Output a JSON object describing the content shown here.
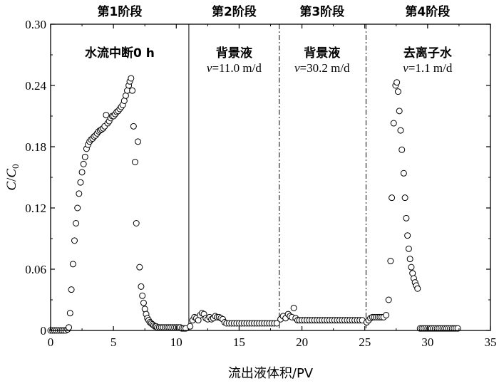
{
  "chart_data": {
    "type": "scatter",
    "xlabel": "流出液体积/PV",
    "ylabel": {
      "main": "C",
      "slash": "/",
      "sub_main": "C",
      "sub": "0"
    },
    "xlim": [
      0,
      35
    ],
    "ylim": [
      0,
      0.3
    ],
    "x_ticks": [
      "0",
      "5",
      "10",
      "15",
      "20",
      "25",
      "30",
      "35"
    ],
    "y_ticks": [
      "0",
      "0.06",
      "0.12",
      "0.18",
      "0.24",
      "0.30"
    ],
    "boundaries": [
      {
        "x": 11.0,
        "style": "solid"
      },
      {
        "x": 18.2,
        "style": "dashdot"
      },
      {
        "x": 25.1,
        "style": "dashdot"
      }
    ],
    "stages": [
      {
        "label": "第1阶段",
        "x": 5.5
      },
      {
        "label": "第2阶段",
        "x": 14.6
      },
      {
        "label": "第3阶段",
        "x": 21.6
      },
      {
        "label": "第4阶段",
        "x": 30.0
      }
    ],
    "annotations": [
      {
        "id": "s1",
        "x": 5.5,
        "line1": "水流中断0 h"
      },
      {
        "id": "s2",
        "x": 14.6,
        "line1": "背景液",
        "var": "v",
        "value": "=11.0 m/d"
      },
      {
        "id": "s3",
        "x": 21.6,
        "line1": "背景液",
        "var": "v",
        "value": "=30.2 m/d"
      },
      {
        "id": "s4",
        "x": 30.0,
        "line1": "去离子水",
        "var": "v",
        "value": "=1.1 m/d"
      }
    ],
    "points": [
      [
        0.0,
        0.0
      ],
      [
        0.15,
        0.0
      ],
      [
        0.3,
        0.0
      ],
      [
        0.45,
        0.0
      ],
      [
        0.6,
        0.0
      ],
      [
        0.75,
        0.0
      ],
      [
        0.9,
        0.0
      ],
      [
        1.05,
        0.0
      ],
      [
        1.2,
        0.0
      ],
      [
        1.35,
        0.001
      ],
      [
        1.45,
        0.003
      ],
      [
        1.55,
        0.017
      ],
      [
        1.65,
        0.04
      ],
      [
        1.78,
        0.065
      ],
      [
        1.9,
        0.088
      ],
      [
        2.02,
        0.105
      ],
      [
        2.14,
        0.12
      ],
      [
        2.26,
        0.134
      ],
      [
        2.38,
        0.145
      ],
      [
        2.5,
        0.155
      ],
      [
        2.62,
        0.163
      ],
      [
        2.74,
        0.17
      ],
      [
        2.86,
        0.178
      ],
      [
        2.98,
        0.182
      ],
      [
        3.1,
        0.185
      ],
      [
        3.22,
        0.187
      ],
      [
        3.34,
        0.188
      ],
      [
        3.46,
        0.19
      ],
      [
        3.58,
        0.191
      ],
      [
        3.7,
        0.193
      ],
      [
        3.82,
        0.195
      ],
      [
        3.94,
        0.196
      ],
      [
        4.06,
        0.197
      ],
      [
        4.18,
        0.198
      ],
      [
        4.3,
        0.2
      ],
      [
        4.42,
        0.211
      ],
      [
        4.54,
        0.203
      ],
      [
        4.66,
        0.205
      ],
      [
        4.78,
        0.208
      ],
      [
        4.9,
        0.21
      ],
      [
        5.02,
        0.21
      ],
      [
        5.14,
        0.212
      ],
      [
        5.26,
        0.214
      ],
      [
        5.38,
        0.215
      ],
      [
        5.5,
        0.217
      ],
      [
        5.62,
        0.219
      ],
      [
        5.74,
        0.221
      ],
      [
        5.86,
        0.225
      ],
      [
        5.98,
        0.23
      ],
      [
        6.1,
        0.235
      ],
      [
        6.22,
        0.24
      ],
      [
        6.3,
        0.244
      ],
      [
        6.4,
        0.247
      ],
      [
        6.5,
        0.235
      ],
      [
        6.6,
        0.2
      ],
      [
        6.72,
        0.165
      ],
      [
        6.82,
        0.105
      ],
      [
        6.95,
        0.185
      ],
      [
        7.08,
        0.062
      ],
      [
        7.2,
        0.043
      ],
      [
        7.3,
        0.034
      ],
      [
        7.4,
        0.027
      ],
      [
        7.5,
        0.021
      ],
      [
        7.6,
        0.016
      ],
      [
        7.7,
        0.012
      ],
      [
        7.8,
        0.01
      ],
      [
        7.9,
        0.008
      ],
      [
        8.0,
        0.007
      ],
      [
        8.1,
        0.006
      ],
      [
        8.2,
        0.005
      ],
      [
        8.3,
        0.004
      ],
      [
        8.4,
        0.004
      ],
      [
        8.5,
        0.003
      ],
      [
        8.65,
        0.003
      ],
      [
        8.8,
        0.003
      ],
      [
        8.95,
        0.003
      ],
      [
        9.1,
        0.003
      ],
      [
        9.25,
        0.003
      ],
      [
        9.4,
        0.003
      ],
      [
        9.55,
        0.003
      ],
      [
        9.7,
        0.003
      ],
      [
        9.85,
        0.003
      ],
      [
        10.0,
        0.003
      ],
      [
        10.15,
        0.003
      ],
      [
        10.3,
        0.003
      ],
      [
        10.45,
        0.002
      ],
      [
        10.6,
        0.002
      ],
      [
        10.75,
        0.002
      ],
      [
        11.1,
        0.004
      ],
      [
        11.3,
        0.01
      ],
      [
        11.45,
        0.013
      ],
      [
        11.6,
        0.012
      ],
      [
        11.75,
        0.01
      ],
      [
        11.9,
        0.015
      ],
      [
        12.05,
        0.017
      ],
      [
        12.2,
        0.016
      ],
      [
        12.35,
        0.012
      ],
      [
        12.5,
        0.011
      ],
      [
        12.65,
        0.013
      ],
      [
        12.8,
        0.011
      ],
      [
        12.95,
        0.012
      ],
      [
        13.1,
        0.014
      ],
      [
        13.25,
        0.013
      ],
      [
        13.4,
        0.013
      ],
      [
        13.55,
        0.012
      ],
      [
        13.7,
        0.011
      ],
      [
        13.85,
        0.008
      ],
      [
        14.0,
        0.007
      ],
      [
        14.2,
        0.007
      ],
      [
        14.4,
        0.007
      ],
      [
        14.6,
        0.007
      ],
      [
        14.8,
        0.007
      ],
      [
        15.0,
        0.007
      ],
      [
        15.2,
        0.007
      ],
      [
        15.4,
        0.007
      ],
      [
        15.6,
        0.007
      ],
      [
        15.8,
        0.007
      ],
      [
        16.0,
        0.007
      ],
      [
        16.2,
        0.007
      ],
      [
        16.4,
        0.007
      ],
      [
        16.6,
        0.007
      ],
      [
        16.8,
        0.007
      ],
      [
        17.0,
        0.007
      ],
      [
        17.2,
        0.007
      ],
      [
        17.4,
        0.007
      ],
      [
        17.6,
        0.007
      ],
      [
        17.8,
        0.007
      ],
      [
        18.0,
        0.007
      ],
      [
        18.3,
        0.011
      ],
      [
        18.5,
        0.014
      ],
      [
        18.7,
        0.012
      ],
      [
        18.9,
        0.016
      ],
      [
        19.05,
        0.014
      ],
      [
        19.2,
        0.013
      ],
      [
        19.35,
        0.022
      ],
      [
        19.5,
        0.012
      ],
      [
        19.65,
        0.01
      ],
      [
        19.8,
        0.01
      ],
      [
        20.0,
        0.01
      ],
      [
        20.2,
        0.01
      ],
      [
        20.4,
        0.01
      ],
      [
        20.6,
        0.01
      ],
      [
        20.8,
        0.01
      ],
      [
        21.0,
        0.01
      ],
      [
        21.2,
        0.01
      ],
      [
        21.4,
        0.01
      ],
      [
        21.6,
        0.01
      ],
      [
        21.8,
        0.01
      ],
      [
        22.0,
        0.01
      ],
      [
        22.2,
        0.01
      ],
      [
        22.4,
        0.01
      ],
      [
        22.6,
        0.01
      ],
      [
        22.8,
        0.01
      ],
      [
        23.0,
        0.01
      ],
      [
        23.2,
        0.01
      ],
      [
        23.4,
        0.01
      ],
      [
        23.6,
        0.01
      ],
      [
        23.8,
        0.01
      ],
      [
        24.0,
        0.01
      ],
      [
        24.2,
        0.01
      ],
      [
        24.4,
        0.01
      ],
      [
        24.6,
        0.01
      ],
      [
        24.8,
        0.01
      ],
      [
        25.15,
        0.008
      ],
      [
        25.3,
        0.01
      ],
      [
        25.45,
        0.012
      ],
      [
        25.6,
        0.013
      ],
      [
        25.75,
        0.013
      ],
      [
        25.9,
        0.013
      ],
      [
        26.05,
        0.013
      ],
      [
        26.2,
        0.013
      ],
      [
        26.35,
        0.013
      ],
      [
        26.5,
        0.013
      ],
      [
        26.7,
        0.015
      ],
      [
        26.9,
        0.03
      ],
      [
        27.05,
        0.068
      ],
      [
        27.15,
        0.13
      ],
      [
        27.3,
        0.203
      ],
      [
        27.45,
        0.24
      ],
      [
        27.55,
        0.243
      ],
      [
        27.65,
        0.234
      ],
      [
        27.75,
        0.215
      ],
      [
        27.85,
        0.196
      ],
      [
        27.95,
        0.177
      ],
      [
        28.1,
        0.154
      ],
      [
        28.2,
        0.13
      ],
      [
        28.3,
        0.11
      ],
      [
        28.4,
        0.093
      ],
      [
        28.5,
        0.08
      ],
      [
        28.6,
        0.07
      ],
      [
        28.7,
        0.062
      ],
      [
        28.8,
        0.056
      ],
      [
        28.9,
        0.051
      ],
      [
        29.0,
        0.047
      ],
      [
        29.1,
        0.044
      ],
      [
        29.2,
        0.041
      ],
      [
        29.4,
        0.002
      ],
      [
        29.55,
        0.002
      ],
      [
        29.7,
        0.002
      ],
      [
        29.85,
        0.002
      ],
      [
        30.0,
        0.002
      ],
      [
        30.15,
        0.002
      ],
      [
        30.3,
        0.002
      ],
      [
        30.45,
        0.002
      ],
      [
        30.6,
        0.002
      ],
      [
        30.75,
        0.002
      ],
      [
        30.9,
        0.002
      ],
      [
        31.05,
        0.002
      ],
      [
        31.2,
        0.002
      ],
      [
        31.35,
        0.002
      ],
      [
        31.5,
        0.002
      ],
      [
        31.65,
        0.002
      ],
      [
        31.8,
        0.002
      ],
      [
        31.95,
        0.002
      ],
      [
        32.1,
        0.002
      ],
      [
        32.25,
        0.002
      ],
      [
        32.4,
        0.002
      ]
    ]
  }
}
